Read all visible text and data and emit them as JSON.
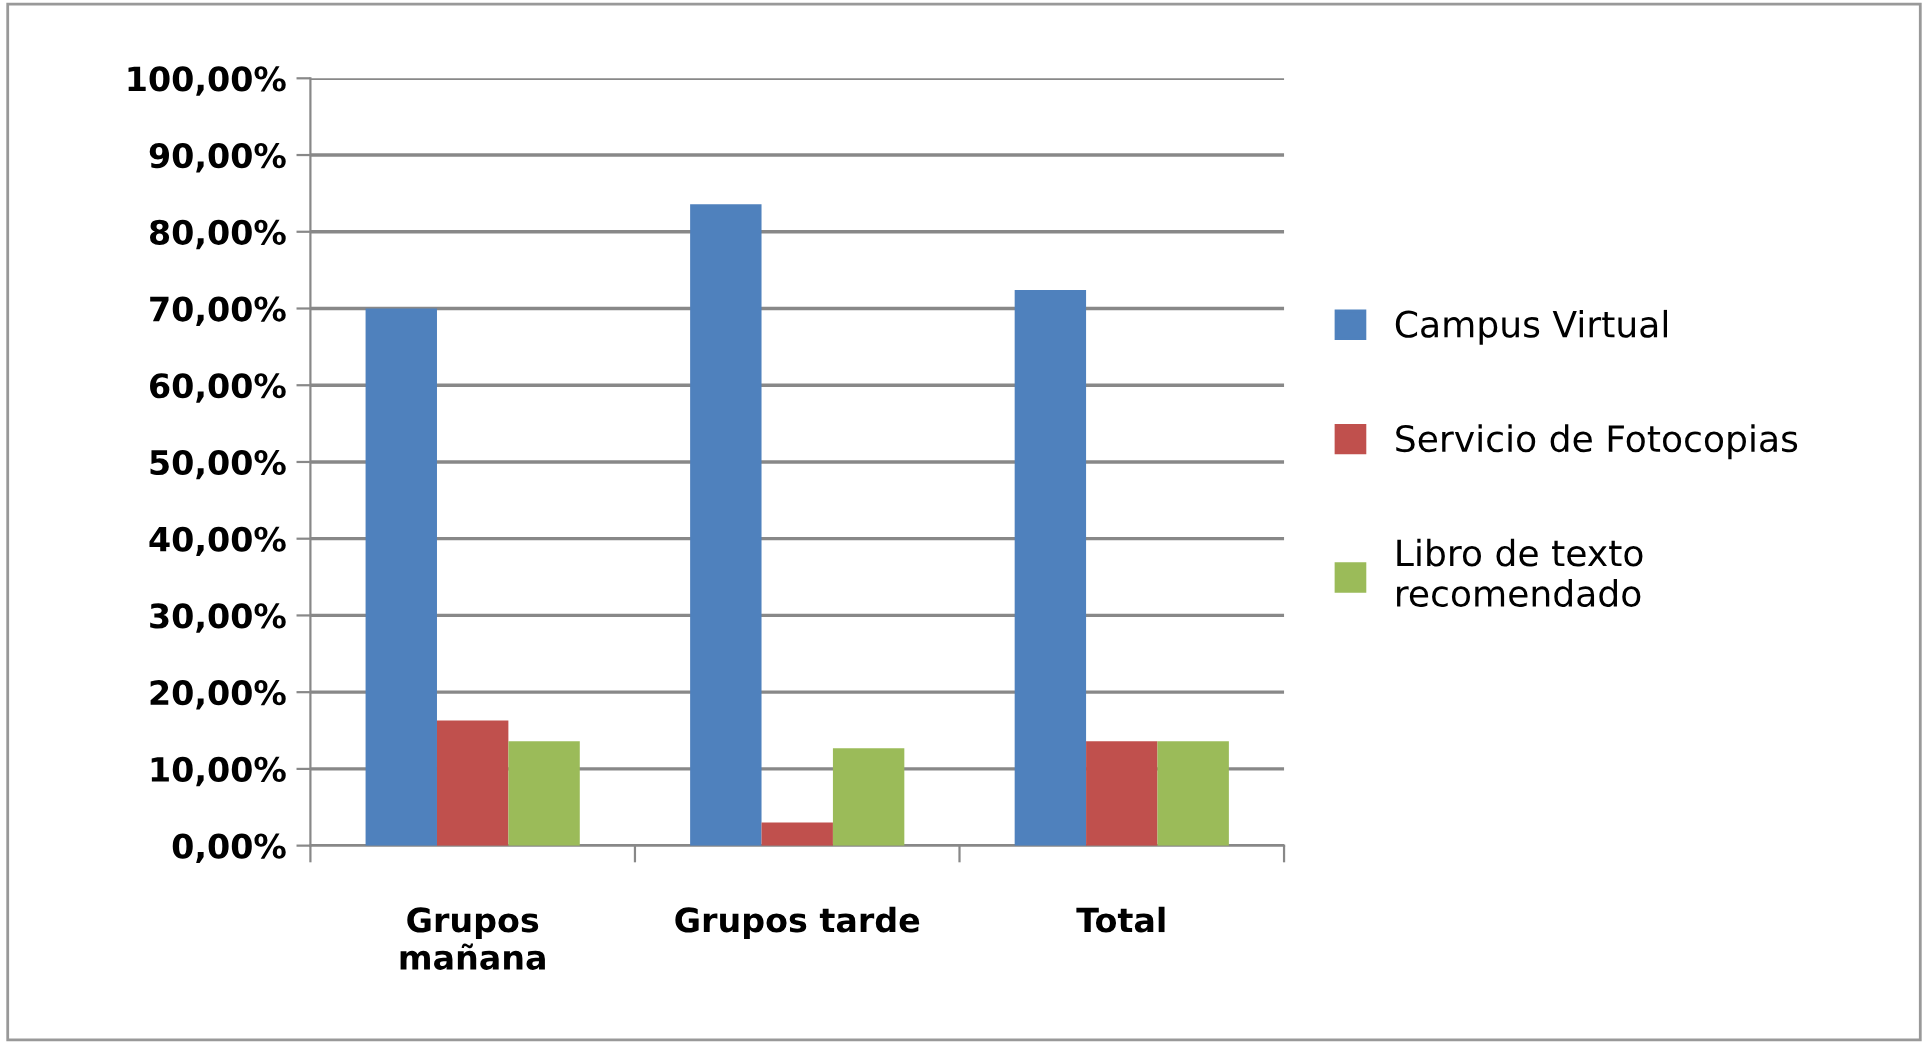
{
  "chart_data": {
    "type": "bar",
    "categories": [
      "Grupos\nmañana",
      "Grupos tarde",
      "Total"
    ],
    "series": [
      {
        "name": "Campus Virtual",
        "color": "#4f81bd",
        "values": [
          70.0,
          83.6,
          72.4
        ]
      },
      {
        "name": "Servicio de Fotocopias",
        "color": "#c0504d",
        "values": [
          16.3,
          3.0,
          13.6
        ]
      },
      {
        "name": "Libro de texto\nrecomendado",
        "color": "#9bbb59",
        "values": [
          13.6,
          12.7,
          13.6
        ]
      }
    ],
    "ylim": [
      0,
      100
    ],
    "yticks": [
      {
        "value": 0,
        "label": "0,00%"
      },
      {
        "value": 10,
        "label": "10,00%"
      },
      {
        "value": 20,
        "label": "20,00%"
      },
      {
        "value": 30,
        "label": "30,00%"
      },
      {
        "value": 40,
        "label": "40,00%"
      },
      {
        "value": 50,
        "label": "50,00%"
      },
      {
        "value": 60,
        "label": "60,00%"
      },
      {
        "value": 70,
        "label": "70,00%"
      },
      {
        "value": 80,
        "label": "80,00%"
      },
      {
        "value": 90,
        "label": "90,00%"
      },
      {
        "value": 100,
        "label": "100,00%"
      }
    ],
    "grid": "y",
    "legend": "right"
  }
}
